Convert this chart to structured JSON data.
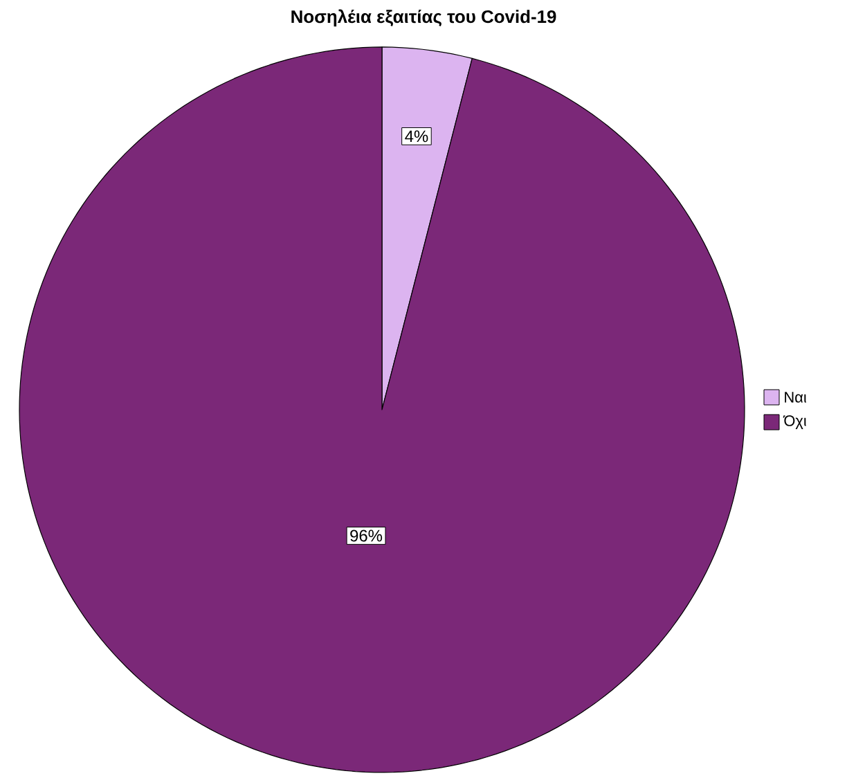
{
  "chart_data": {
    "type": "pie",
    "title": "Νοσηλέια εξαιτίας του Covid-19",
    "categories": [
      "Ναι",
      "Όχι"
    ],
    "values": [
      4,
      96
    ],
    "colors": [
      "#dcb4f0",
      "#7b2878"
    ],
    "value_labels": [
      "4%",
      "96%"
    ],
    "legend": "right"
  }
}
